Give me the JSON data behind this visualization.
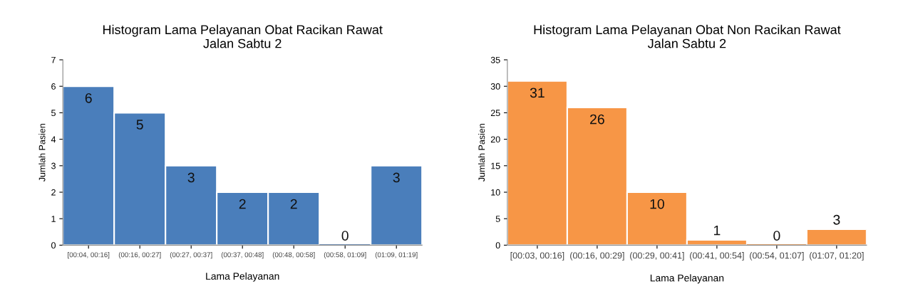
{
  "chart_data": [
    {
      "type": "bar",
      "title": "Histogram Lama Pelayanan Obat Racikan Rawat\nJalan Sabtu 2",
      "xlabel": "Lama Pelayanan",
      "ylabel": "Jumlah Pasien",
      "categories": [
        "[00:04, 00:16]",
        "(00:16, 00:27]",
        "(00:27, 00:37]",
        "(00:37, 00:48]",
        "(00:48, 00:58]",
        "(00:58, 01:09]",
        "(01:09, 01:19]"
      ],
      "values": [
        6,
        5,
        3,
        2,
        2,
        0,
        3
      ],
      "color": "#4a7ebb",
      "ylim": [
        0,
        7
      ],
      "yticks": [
        0,
        1,
        2,
        3,
        4,
        5,
        6,
        7
      ],
      "grid": false,
      "data_labels": true
    },
    {
      "type": "bar",
      "title": "Histogram Lama Pelayanan Obat Non Racikan Rawat\nJalan Sabtu 2",
      "xlabel": "Lama Pelayanan",
      "ylabel": "Jumlah Pasien",
      "categories": [
        "[00:03, 00:16]",
        "(00:16, 00:29]",
        "(00:29, 00:41]",
        "(00:41, 00:54]",
        "(00:54, 01:07]",
        "(01:07, 01:20]"
      ],
      "values": [
        31,
        26,
        10,
        1,
        0,
        3
      ],
      "color": "#f79646",
      "ylim": [
        0,
        35
      ],
      "yticks": [
        0,
        5,
        10,
        15,
        20,
        25,
        30,
        35
      ],
      "grid": false,
      "data_labels": true
    }
  ]
}
